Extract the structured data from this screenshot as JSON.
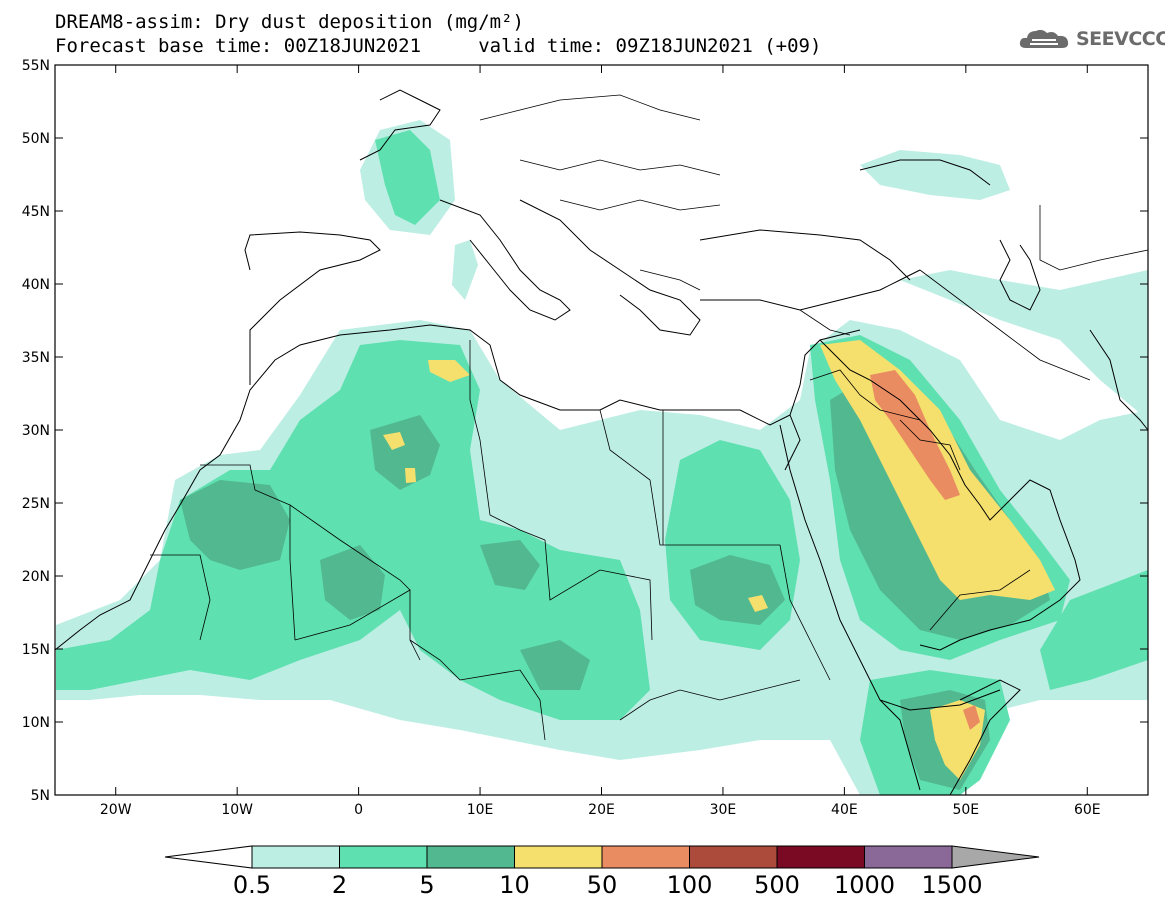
{
  "title": {
    "line1": "DREAM8-assim: Dry dust deposition (mg/m²)",
    "line2": "Forecast base time: 00Z18JUN2021     valid time: 09Z18JUN2021 (+09)"
  },
  "logo": {
    "text": "SEEVCCC",
    "icon": "cloud-icon"
  },
  "map": {
    "lon_range": [
      -25,
      65
    ],
    "lat_range": [
      5,
      55
    ],
    "x_ticks": [
      {
        "lon": -20,
        "label": "20W"
      },
      {
        "lon": -10,
        "label": "10W"
      },
      {
        "lon": 0,
        "label": "0"
      },
      {
        "lon": 10,
        "label": "10E"
      },
      {
        "lon": 20,
        "label": "20E"
      },
      {
        "lon": 30,
        "label": "30E"
      },
      {
        "lon": 40,
        "label": "40E"
      },
      {
        "lon": 50,
        "label": "50E"
      },
      {
        "lon": 60,
        "label": "60E"
      }
    ],
    "y_ticks": [
      {
        "lat": 55,
        "label": "55N"
      },
      {
        "lat": 50,
        "label": "50N"
      },
      {
        "lat": 45,
        "label": "45N"
      },
      {
        "lat": 40,
        "label": "40N"
      },
      {
        "lat": 35,
        "label": "35N"
      },
      {
        "lat": 30,
        "label": "30N"
      },
      {
        "lat": 25,
        "label": "25N"
      },
      {
        "lat": 20,
        "label": "20N"
      },
      {
        "lat": 15,
        "label": "15N"
      },
      {
        "lat": 10,
        "label": "10N"
      },
      {
        "lat": 5,
        "label": "5N"
      }
    ]
  },
  "legend": {
    "levels": [
      "0.5",
      "2",
      "5",
      "10",
      "50",
      "100",
      "500",
      "1000",
      "1500"
    ],
    "colors": [
      "#bdeee3",
      "#5fe0b0",
      "#52b890",
      "#f5e06e",
      "#ea8c62",
      "#ac4a3c",
      "#7a0a24",
      "#8a6898"
    ],
    "under_color": "#ffffff",
    "over_color": "#a8a8a8"
  },
  "colors": {
    "c05": "#bdeee3",
    "c2": "#5fe0b0",
    "c5": "#52b890",
    "c10": "#f5e06e",
    "c50": "#ea8c62",
    "c100": "#ac4a3c"
  }
}
